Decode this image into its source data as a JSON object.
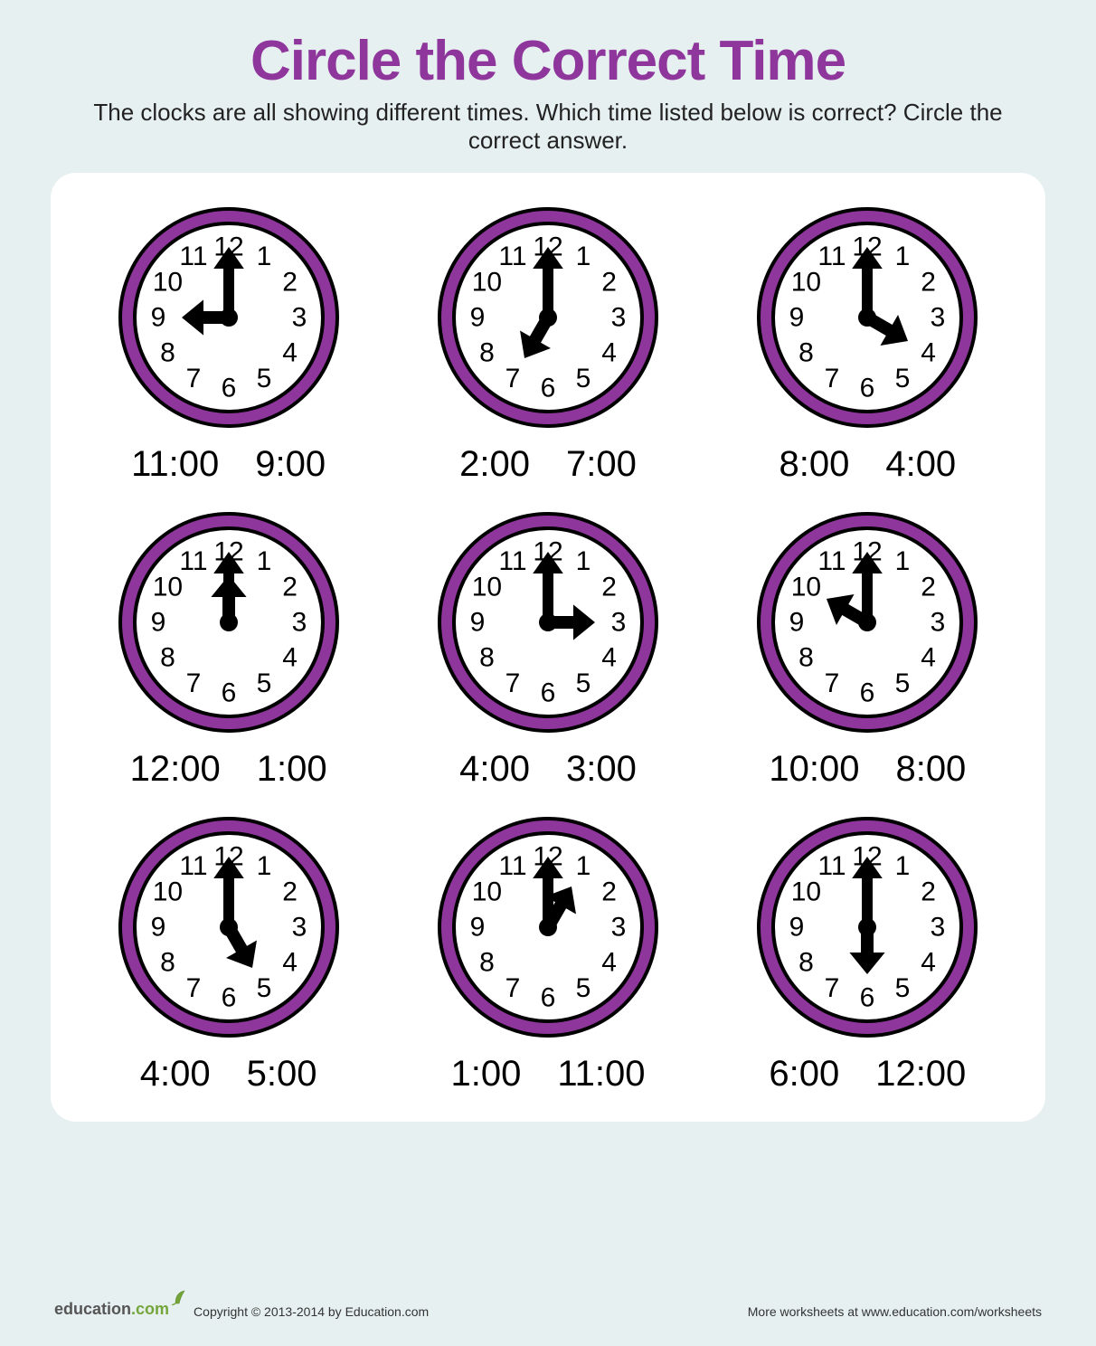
{
  "page_bg": "#e7f0f0",
  "panel_bg": "#ffffff",
  "title_color": "#8e369c",
  "text_color": "#1a1a1a",
  "title": "Circle the Correct Time",
  "instructions": "The clocks are all showing different times. Which time listed below is correct? Circle the correct answer.",
  "clock_style": {
    "outer_stroke": "#000000",
    "ring_fill": "#8e369c",
    "ring_width": 16,
    "face_fill": "#ffffff",
    "numeral_color": "#000000",
    "numeral_font_size": 30,
    "hand_color": "#000000",
    "hour_hand_length": 52,
    "minute_hand_length": 78,
    "hand_width": 14
  },
  "clocks": [
    {
      "hour": 9,
      "minute": 0,
      "options": [
        "11:00",
        "9:00"
      ]
    },
    {
      "hour": 7,
      "minute": 0,
      "options": [
        "2:00",
        "7:00"
      ]
    },
    {
      "hour": 4,
      "minute": 0,
      "options": [
        "8:00",
        "4:00"
      ]
    },
    {
      "hour": 12,
      "minute": 0,
      "options": [
        "12:00",
        "1:00"
      ]
    },
    {
      "hour": 3,
      "minute": 0,
      "options": [
        "4:00",
        "3:00"
      ]
    },
    {
      "hour": 10,
      "minute": 0,
      "options": [
        "10:00",
        "8:00"
      ]
    },
    {
      "hour": 5,
      "minute": 0,
      "options": [
        "4:00",
        "5:00"
      ]
    },
    {
      "hour": 1,
      "minute": 0,
      "options": [
        "1:00",
        "11:00"
      ]
    },
    {
      "hour": 6,
      "minute": 0,
      "options": [
        "6:00",
        "12:00"
      ]
    }
  ],
  "footer": {
    "logo_text": "education",
    "logo_suffix": ".com",
    "copyright": "Copyright © 2013-2014 by Education.com",
    "more": "More worksheets at www.education.com/worksheets"
  }
}
